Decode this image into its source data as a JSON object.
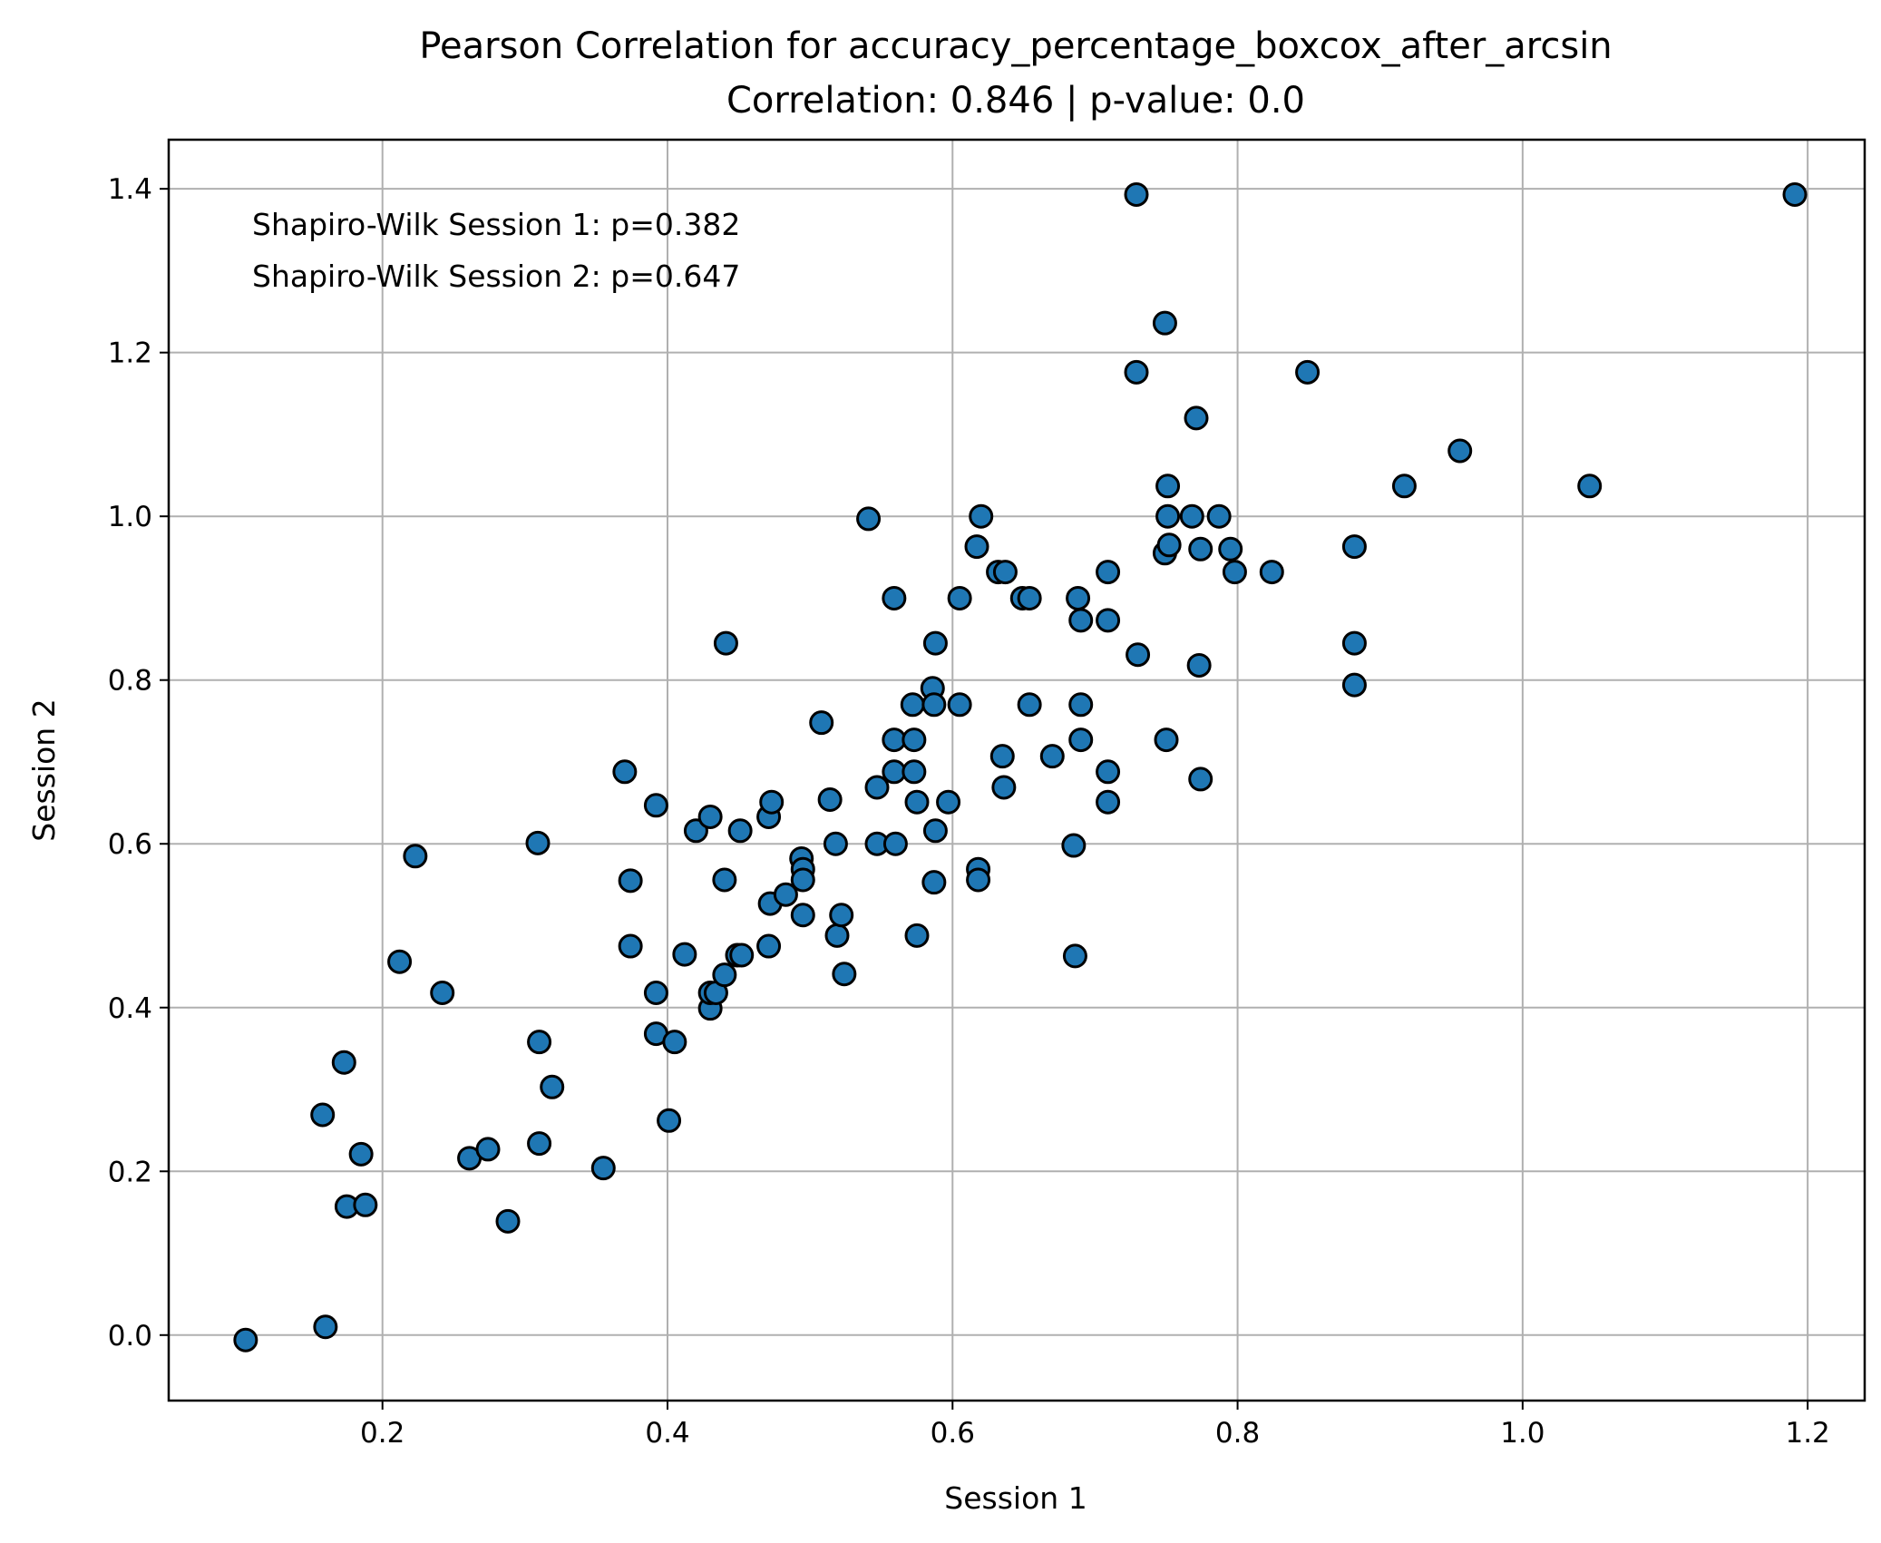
{
  "chart_data": {
    "type": "scatter",
    "title": "Pearson Correlation for accuracy_percentage_boxcox_after_arcsin",
    "subtitle": "Correlation: 0.846 | p-value: 0.0",
    "xlabel": "Session 1",
    "ylabel": "Session 2",
    "xlim": [
      0.05,
      1.24
    ],
    "ylim": [
      -0.08,
      1.46
    ],
    "xticks": [
      0.2,
      0.4,
      0.6,
      0.8,
      1.0,
      1.2
    ],
    "xtick_labels": [
      "0.2",
      "0.4",
      "0.6",
      "0.8",
      "1.0",
      "1.2"
    ],
    "yticks": [
      0.0,
      0.2,
      0.4,
      0.6,
      0.8,
      1.0,
      1.2,
      1.4
    ],
    "ytick_labels": [
      "0.0",
      "0.2",
      "0.4",
      "0.6",
      "0.8",
      "1.0",
      "1.2",
      "1.4"
    ],
    "grid": true,
    "annotations": [
      "Shapiro-Wilk Session 1: p=0.382",
      "Shapiro-Wilk Session 2: p=0.647"
    ],
    "marker_color": "#1f77b4",
    "marker_edge_color": "#000000",
    "points": [
      [
        0.104,
        -0.006
      ],
      [
        0.16,
        0.01
      ],
      [
        0.175,
        0.157
      ],
      [
        0.188,
        0.159
      ],
      [
        0.185,
        0.221
      ],
      [
        0.158,
        0.269
      ],
      [
        0.173,
        0.333
      ],
      [
        0.212,
        0.456
      ],
      [
        0.223,
        0.585
      ],
      [
        0.242,
        0.418
      ],
      [
        0.261,
        0.216
      ],
      [
        0.274,
        0.227
      ],
      [
        0.288,
        0.139
      ],
      [
        0.31,
        0.234
      ],
      [
        0.31,
        0.358
      ],
      [
        0.319,
        0.303
      ],
      [
        0.309,
        0.601
      ],
      [
        0.355,
        0.204
      ],
      [
        0.37,
        0.688
      ],
      [
        0.374,
        0.555
      ],
      [
        0.374,
        0.475
      ],
      [
        0.392,
        0.647
      ],
      [
        0.392,
        0.368
      ],
      [
        0.392,
        0.418
      ],
      [
        0.401,
        0.262
      ],
      [
        0.405,
        0.358
      ],
      [
        0.412,
        0.465
      ],
      [
        0.42,
        0.616
      ],
      [
        0.43,
        0.633
      ],
      [
        0.43,
        0.399
      ],
      [
        0.43,
        0.418
      ],
      [
        0.434,
        0.418
      ],
      [
        0.44,
        0.556
      ],
      [
        0.44,
        0.44
      ],
      [
        0.441,
        0.845
      ],
      [
        0.449,
        0.464
      ],
      [
        0.451,
        0.616
      ],
      [
        0.452,
        0.464
      ],
      [
        0.471,
        0.475
      ],
      [
        0.471,
        0.633
      ],
      [
        0.473,
        0.651
      ],
      [
        0.472,
        0.527
      ],
      [
        0.483,
        0.538
      ],
      [
        0.494,
        0.582
      ],
      [
        0.495,
        0.569
      ],
      [
        0.495,
        0.556
      ],
      [
        0.495,
        0.513
      ],
      [
        0.508,
        0.748
      ],
      [
        0.514,
        0.654
      ],
      [
        0.518,
        0.6
      ],
      [
        0.519,
        0.488
      ],
      [
        0.522,
        0.513
      ],
      [
        0.524,
        0.441
      ],
      [
        0.541,
        0.997
      ],
      [
        0.547,
        0.669
      ],
      [
        0.547,
        0.6
      ],
      [
        0.559,
        0.9
      ],
      [
        0.559,
        0.727
      ],
      [
        0.559,
        0.688
      ],
      [
        0.56,
        0.6
      ],
      [
        0.572,
        0.77
      ],
      [
        0.573,
        0.727
      ],
      [
        0.573,
        0.688
      ],
      [
        0.575,
        0.651
      ],
      [
        0.575,
        0.488
      ],
      [
        0.586,
        0.79
      ],
      [
        0.588,
        0.845
      ],
      [
        0.587,
        0.77
      ],
      [
        0.588,
        0.616
      ],
      [
        0.587,
        0.553
      ],
      [
        0.597,
        0.651
      ],
      [
        0.605,
        0.9
      ],
      [
        0.605,
        0.77
      ],
      [
        0.617,
        0.963
      ],
      [
        0.62,
        1.0
      ],
      [
        0.618,
        0.569
      ],
      [
        0.618,
        0.556
      ],
      [
        0.632,
        0.932
      ],
      [
        0.637,
        0.932
      ],
      [
        0.635,
        0.707
      ],
      [
        0.636,
        0.669
      ],
      [
        0.649,
        0.9
      ],
      [
        0.654,
        0.9
      ],
      [
        0.654,
        0.77
      ],
      [
        0.67,
        0.707
      ],
      [
        0.685,
        0.598
      ],
      [
        0.686,
        0.463
      ],
      [
        0.688,
        0.9
      ],
      [
        0.69,
        0.873
      ],
      [
        0.69,
        0.77
      ],
      [
        0.69,
        0.727
      ],
      [
        0.709,
        0.932
      ],
      [
        0.709,
        0.873
      ],
      [
        0.709,
        0.688
      ],
      [
        0.709,
        0.651
      ],
      [
        0.729,
        1.393
      ],
      [
        0.729,
        1.176
      ],
      [
        0.73,
        0.831
      ],
      [
        0.749,
        1.236
      ],
      [
        0.749,
        0.955
      ],
      [
        0.751,
        1.037
      ],
      [
        0.751,
        1.0
      ],
      [
        0.752,
        0.965
      ],
      [
        0.75,
        0.727
      ],
      [
        0.768,
        1.0
      ],
      [
        0.771,
        1.12
      ],
      [
        0.774,
        0.96
      ],
      [
        0.773,
        0.818
      ],
      [
        0.774,
        0.679
      ],
      [
        0.787,
        1.0
      ],
      [
        0.795,
        0.96
      ],
      [
        0.798,
        0.932
      ],
      [
        0.824,
        0.932
      ],
      [
        0.849,
        1.176
      ],
      [
        0.882,
        0.963
      ],
      [
        0.882,
        0.845
      ],
      [
        0.882,
        0.794
      ],
      [
        0.917,
        1.037
      ],
      [
        0.956,
        1.08
      ],
      [
        1.047,
        1.037
      ],
      [
        1.191,
        1.393
      ]
    ]
  }
}
